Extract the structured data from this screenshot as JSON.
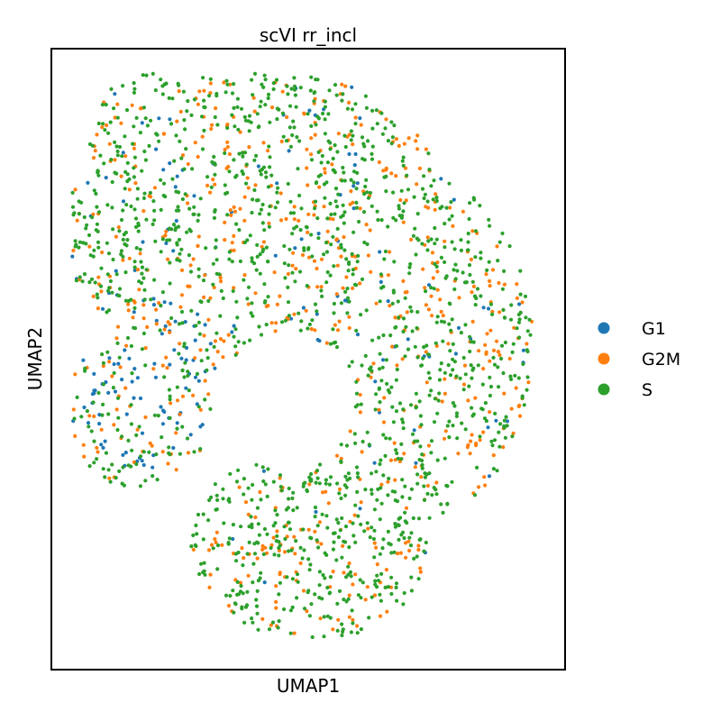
{
  "chart_data": {
    "type": "scatter",
    "title": "scVI rr_incl",
    "xlabel": "UMAP1",
    "ylabel": "UMAP2",
    "xlim": [
      0,
      100
    ],
    "ylim": [
      0,
      100
    ],
    "grid": false,
    "ticks_shown": false,
    "legend_position": "right",
    "series": [
      {
        "name": "G1",
        "color": "#1f77b4",
        "points_approx": 160
      },
      {
        "name": "G2M",
        "color": "#ff7f0e",
        "points_approx": 700
      },
      {
        "name": "S",
        "color": "#2ca02c",
        "points_approx": 1500
      }
    ]
  }
}
